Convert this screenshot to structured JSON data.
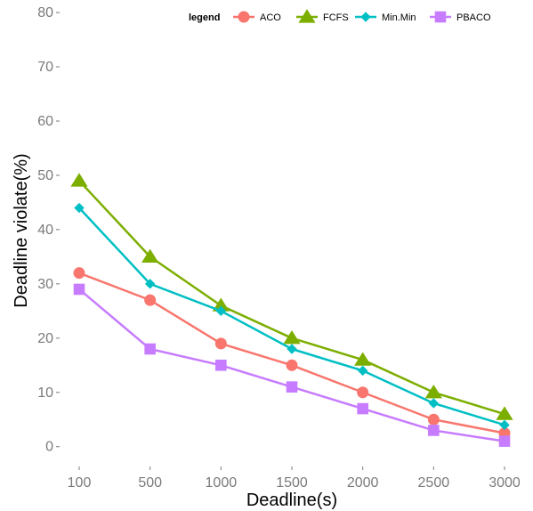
{
  "chart_data": {
    "type": "line",
    "title": "",
    "xlabel": "Deadline(s)",
    "ylabel": "Deadline violate(%)",
    "categories": [
      "100",
      "500",
      "1000",
      "1500",
      "2000",
      "2500",
      "3000"
    ],
    "ylim": [
      -3,
      81
    ],
    "yticks": [
      "0",
      "10",
      "20",
      "30",
      "40",
      "50",
      "60",
      "70",
      "80"
    ],
    "grid": false,
    "legend": {
      "title": "legend",
      "placement": "top-right",
      "orientation": "horizontal"
    },
    "series": [
      {
        "name": "ACO",
        "color": "#F8766D",
        "marker": "circle",
        "values": [
          32,
          27,
          19,
          15,
          10,
          5,
          2.5
        ]
      },
      {
        "name": "FCFS",
        "color": "#7CAE00",
        "marker": "triangle",
        "values": [
          49,
          35,
          26,
          20,
          16,
          10,
          6
        ]
      },
      {
        "name": "Min.Min",
        "color": "#00BFC4",
        "marker": "diamond",
        "values": [
          44,
          30,
          25,
          18,
          14,
          8,
          4
        ]
      },
      {
        "name": "PBACO",
        "color": "#C77CFF",
        "marker": "square",
        "values": [
          29,
          18,
          15,
          11,
          7,
          3,
          1
        ]
      }
    ]
  }
}
